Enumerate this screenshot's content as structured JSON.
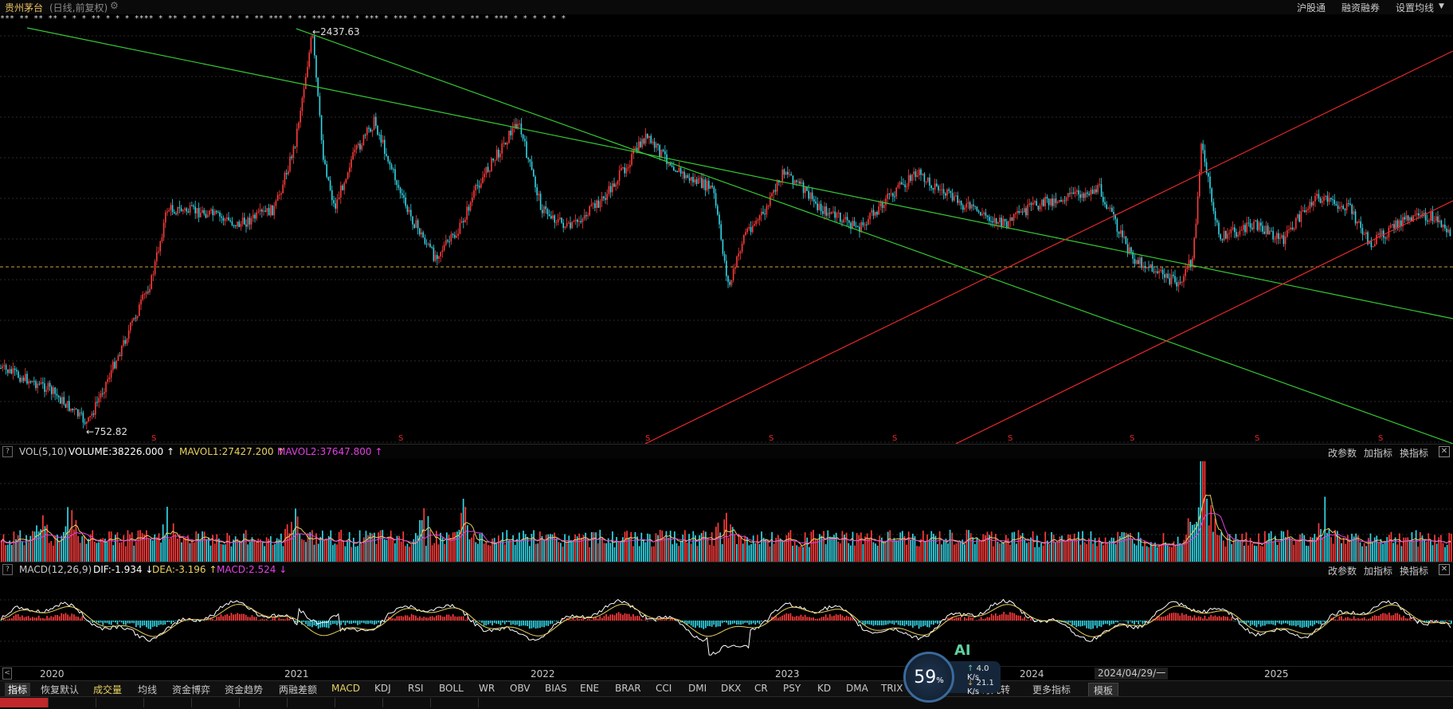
{
  "header": {
    "stock_name": "贵州茅台",
    "period_info": "(日线,前复权)",
    "gear_icon": "gear-icon",
    "links": [
      "沪股通",
      "融资融券",
      "设置均线"
    ]
  },
  "mark_row": "*** ** ** ** * * * ** * * * **** * ** * * * * * ** * ** *** * ** *** * ** * *** * *** * * * * * * ** * *** * * * * * *",
  "price_chart": {
    "high_label": "2437.63",
    "low_label": "752.82",
    "s_marker": "S",
    "colors": {
      "up": "#ff3b3b",
      "down": "#32d6e6",
      "trend_green": "#35c935",
      "trend_red": "#e8282a",
      "ref_line": "#d0a040"
    }
  },
  "volume_panel": {
    "help": "?",
    "name": "VOL(5,10)",
    "volume": "VOLUME:38226.000",
    "mavol1": "MAVOL1:27427.200",
    "mavol2": "MAVOL2:37647.800",
    "arrow": "↑",
    "buttons": [
      "改参数",
      "加指标",
      "换指标"
    ],
    "close": "✕"
  },
  "macd_panel": {
    "help": "?",
    "name": "MACD(12,26,9)",
    "dif": "DIF:-1.934",
    "dif_arrow": "↓",
    "dea": "DEA:-3.196",
    "dea_arrow": "↑",
    "macd": "MACD:2.524",
    "macd_arrow": "↓",
    "buttons": [
      "改参数",
      "加指标",
      "换指标"
    ],
    "close": "✕"
  },
  "timeline": {
    "nav_left": "<",
    "years": [
      "2020",
      "2021",
      "2022",
      "2023",
      "2024",
      "2025"
    ],
    "date_box": "2024/04/29/一"
  },
  "tabs": [
    "指标",
    "恢复默认",
    "成交量",
    "均线",
    "资金博弈",
    "资金趋势",
    "两融差额",
    "MACD",
    "KDJ",
    "RSI",
    "BOLL",
    "WR",
    "OBV",
    "BIAS",
    "ENE",
    "BRAR",
    "CCI",
    "DMI",
    "DKX",
    "CR",
    "PSY",
    "KD",
    "DMA",
    "TRIX",
    "神奇九转",
    "更多指标",
    "模板"
  ],
  "overlay": {
    "ai_label": "AI",
    "cpu_percent": "59",
    "percent_sign": "%",
    "upload": "4.0 K/s",
    "download": "21.1 K/s",
    "up_arrow": "↑",
    "down_arrow": "↓"
  }
}
